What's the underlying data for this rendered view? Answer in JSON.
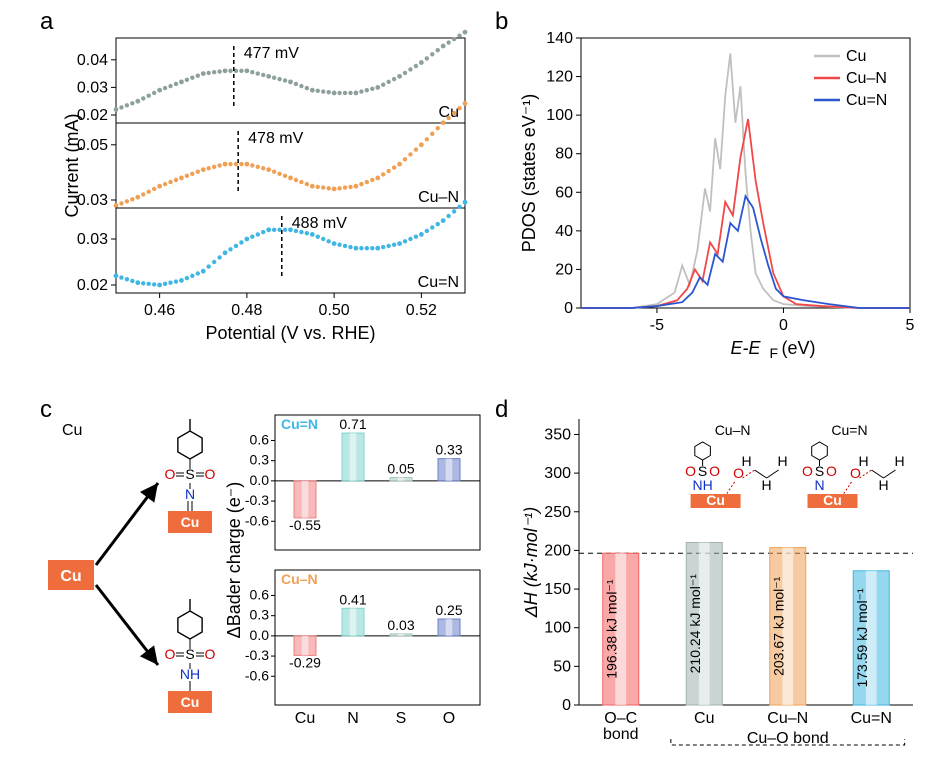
{
  "colors": {
    "cu_gray": "#8ea09e",
    "cuN_orange": "#f0a055",
    "cueqN_cyan": "#3fb6e3",
    "pdos_cu": "#c0c0c0",
    "pdos_cun": "#f04848",
    "pdos_cue": "#2a56d0",
    "bar_cu": "#f08080",
    "bar_n": "#7fd4cc",
    "bar_s": "#a8c8c0",
    "bar_o": "#6880c8",
    "d_oc": "#f46060",
    "d_cu": "#a0b0b0",
    "d_cun": "#f0a055",
    "d_cue": "#3fb6e3",
    "cu_block": "#ef6d3c"
  },
  "panel_a": {
    "label": "a",
    "xlabel": "Potential (V vs. RHE)",
    "ylabel": "Current (mA)",
    "xlim": [
      0.45,
      0.53
    ],
    "xticks": [
      0.46,
      0.48,
      0.5,
      0.52
    ],
    "sub": [
      {
        "name": "Cu",
        "peak_label": "477 mV",
        "yticks": [
          0.02,
          0.03,
          0.04
        ]
      },
      {
        "name": "Cu–N",
        "peak_label": "478 mV",
        "yticks": [
          0.03,
          0.05
        ]
      },
      {
        "name": "Cu=N",
        "peak_label": "488 mV",
        "yticks": [
          0.02,
          0.03
        ]
      }
    ],
    "series": {
      "Cu": {
        "color": "#8ea09e",
        "peak_x": 0.477,
        "pts": [
          [
            0.45,
            0.022
          ],
          [
            0.455,
            0.025
          ],
          [
            0.46,
            0.029
          ],
          [
            0.465,
            0.032
          ],
          [
            0.47,
            0.035
          ],
          [
            0.475,
            0.036
          ],
          [
            0.48,
            0.036
          ],
          [
            0.485,
            0.034
          ],
          [
            0.49,
            0.032
          ],
          [
            0.495,
            0.029
          ],
          [
            0.5,
            0.028
          ],
          [
            0.505,
            0.028
          ],
          [
            0.51,
            0.03
          ],
          [
            0.515,
            0.034
          ],
          [
            0.52,
            0.039
          ],
          [
            0.525,
            0.045
          ],
          [
            0.53,
            0.05
          ]
        ]
      },
      "Cu–N": {
        "color": "#f0a055",
        "peak_x": 0.478,
        "pts": [
          [
            0.45,
            0.028
          ],
          [
            0.455,
            0.031
          ],
          [
            0.46,
            0.035
          ],
          [
            0.465,
            0.038
          ],
          [
            0.47,
            0.041
          ],
          [
            0.475,
            0.043
          ],
          [
            0.48,
            0.043
          ],
          [
            0.485,
            0.041
          ],
          [
            0.49,
            0.038
          ],
          [
            0.495,
            0.035
          ],
          [
            0.5,
            0.034
          ],
          [
            0.505,
            0.035
          ],
          [
            0.51,
            0.038
          ],
          [
            0.515,
            0.043
          ],
          [
            0.52,
            0.05
          ],
          [
            0.525,
            0.058
          ],
          [
            0.53,
            0.065
          ]
        ]
      },
      "Cu=N": {
        "color": "#3fb6e3",
        "peak_x": 0.488,
        "pts": [
          [
            0.45,
            0.022
          ],
          [
            0.455,
            0.0205
          ],
          [
            0.46,
            0.02
          ],
          [
            0.465,
            0.021
          ],
          [
            0.47,
            0.023
          ],
          [
            0.475,
            0.027
          ],
          [
            0.48,
            0.03
          ],
          [
            0.485,
            0.032
          ],
          [
            0.49,
            0.032
          ],
          [
            0.495,
            0.031
          ],
          [
            0.5,
            0.029
          ],
          [
            0.505,
            0.028
          ],
          [
            0.51,
            0.028
          ],
          [
            0.515,
            0.029
          ],
          [
            0.52,
            0.031
          ],
          [
            0.525,
            0.034
          ],
          [
            0.53,
            0.038
          ]
        ]
      }
    }
  },
  "panel_b": {
    "label": "b",
    "xlabel": "E-E_F  (eV)",
    "ylabel": "PDOS (states eV⁻¹)",
    "xlim": [
      -8,
      5
    ],
    "xticks": [
      -5,
      0,
      5
    ],
    "ylim": [
      0,
      140
    ],
    "yticks": [
      0,
      20,
      40,
      60,
      80,
      100,
      120,
      140
    ],
    "legend": [
      {
        "label": "Cu",
        "color": "#c0c0c0"
      },
      {
        "label": "Cu–N",
        "color": "#f04848"
      },
      {
        "label": "Cu=N",
        "color": "#2a56d0"
      }
    ],
    "series": {
      "Cu": {
        "color": "#c0c0c0",
        "pts": [
          [
            -8,
            0
          ],
          [
            -6,
            0
          ],
          [
            -5,
            2
          ],
          [
            -4.3,
            8
          ],
          [
            -4.0,
            22
          ],
          [
            -3.7,
            12
          ],
          [
            -3.4,
            30
          ],
          [
            -3.1,
            62
          ],
          [
            -2.9,
            50
          ],
          [
            -2.7,
            88
          ],
          [
            -2.5,
            72
          ],
          [
            -2.3,
            110
          ],
          [
            -2.1,
            132
          ],
          [
            -1.9,
            96
          ],
          [
            -1.7,
            115
          ],
          [
            -1.5,
            70
          ],
          [
            -1.3,
            40
          ],
          [
            -1.1,
            18
          ],
          [
            -0.8,
            10
          ],
          [
            -0.4,
            4
          ],
          [
            0,
            2
          ],
          [
            1,
            1
          ],
          [
            3,
            0
          ],
          [
            5,
            0
          ]
        ]
      },
      "Cu–N": {
        "color": "#f04848",
        "pts": [
          [
            -8,
            0
          ],
          [
            -6,
            0
          ],
          [
            -5,
            1
          ],
          [
            -4.2,
            4
          ],
          [
            -3.8,
            10
          ],
          [
            -3.5,
            20
          ],
          [
            -3.2,
            14
          ],
          [
            -2.9,
            34
          ],
          [
            -2.6,
            28
          ],
          [
            -2.3,
            55
          ],
          [
            -2.0,
            48
          ],
          [
            -1.7,
            78
          ],
          [
            -1.4,
            98
          ],
          [
            -1.1,
            66
          ],
          [
            -0.8,
            44
          ],
          [
            -0.4,
            18
          ],
          [
            0,
            6
          ],
          [
            0.5,
            2
          ],
          [
            1.5,
            1
          ],
          [
            3,
            0
          ],
          [
            5,
            0
          ]
        ]
      },
      "Cu=N": {
        "color": "#2a56d0",
        "pts": [
          [
            -8,
            0
          ],
          [
            -6,
            0
          ],
          [
            -5,
            1
          ],
          [
            -4.0,
            3
          ],
          [
            -3.6,
            8
          ],
          [
            -3.3,
            16
          ],
          [
            -3.0,
            12
          ],
          [
            -2.7,
            28
          ],
          [
            -2.4,
            24
          ],
          [
            -2.1,
            44
          ],
          [
            -1.8,
            40
          ],
          [
            -1.5,
            58
          ],
          [
            -1.2,
            52
          ],
          [
            -0.9,
            36
          ],
          [
            -0.6,
            22
          ],
          [
            -0.3,
            10
          ],
          [
            0,
            6
          ],
          [
            0.8,
            4
          ],
          [
            1.8,
            2
          ],
          [
            3,
            0
          ],
          [
            5,
            0
          ]
        ]
      }
    }
  },
  "panel_c": {
    "label": "c",
    "cu_label": "Cu",
    "ylabel": "ΔBader charge (e⁻)",
    "categories": [
      "Cu",
      "N",
      "S",
      "O"
    ],
    "ylim": [
      -0.7,
      0.8
    ],
    "yticks": [
      -0.6,
      -0.3,
      0.0,
      0.3,
      0.6
    ],
    "charts": [
      {
        "title": "Cu=N",
        "title_color": "#3fb6e3",
        "values": {
          "Cu": -0.55,
          "N": 0.71,
          "S": 0.05,
          "O": 0.33
        }
      },
      {
        "title": "Cu–N",
        "title_color": "#f0a055",
        "values": {
          "Cu": -0.29,
          "N": 0.41,
          "S": 0.03,
          "O": 0.25
        }
      }
    ],
    "bar_colors": {
      "Cu": "#f08080",
      "N": "#7fd4cc",
      "S": "#a8c8c0",
      "O": "#6880c8"
    }
  },
  "panel_d": {
    "label": "d",
    "ylabel": "ΔH (kJ·mol⁻¹)",
    "ylim": [
      0,
      370
    ],
    "yticks": [
      0,
      50,
      100,
      150,
      200,
      250,
      300,
      350
    ],
    "bars": [
      {
        "label": "O–C\nbond",
        "value": 196.38,
        "val_label": "196.38 kJ mol⁻¹",
        "color": "#f46060"
      },
      {
        "label": "Cu",
        "value": 210.24,
        "val_label": "210.24 kJ mol⁻¹",
        "color": "#a0b0b0"
      },
      {
        "label": "Cu–N",
        "value": 203.67,
        "val_label": "203.67 kJ mol⁻¹",
        "color": "#f0a055"
      },
      {
        "label": "Cu=N",
        "value": 173.59,
        "val_label": "173.59 kJ mol⁻¹",
        "color": "#3fb6e3"
      }
    ],
    "bracket_label": "Cu–O bond",
    "inset_labels": [
      "Cu–N",
      "Cu=N"
    ]
  }
}
